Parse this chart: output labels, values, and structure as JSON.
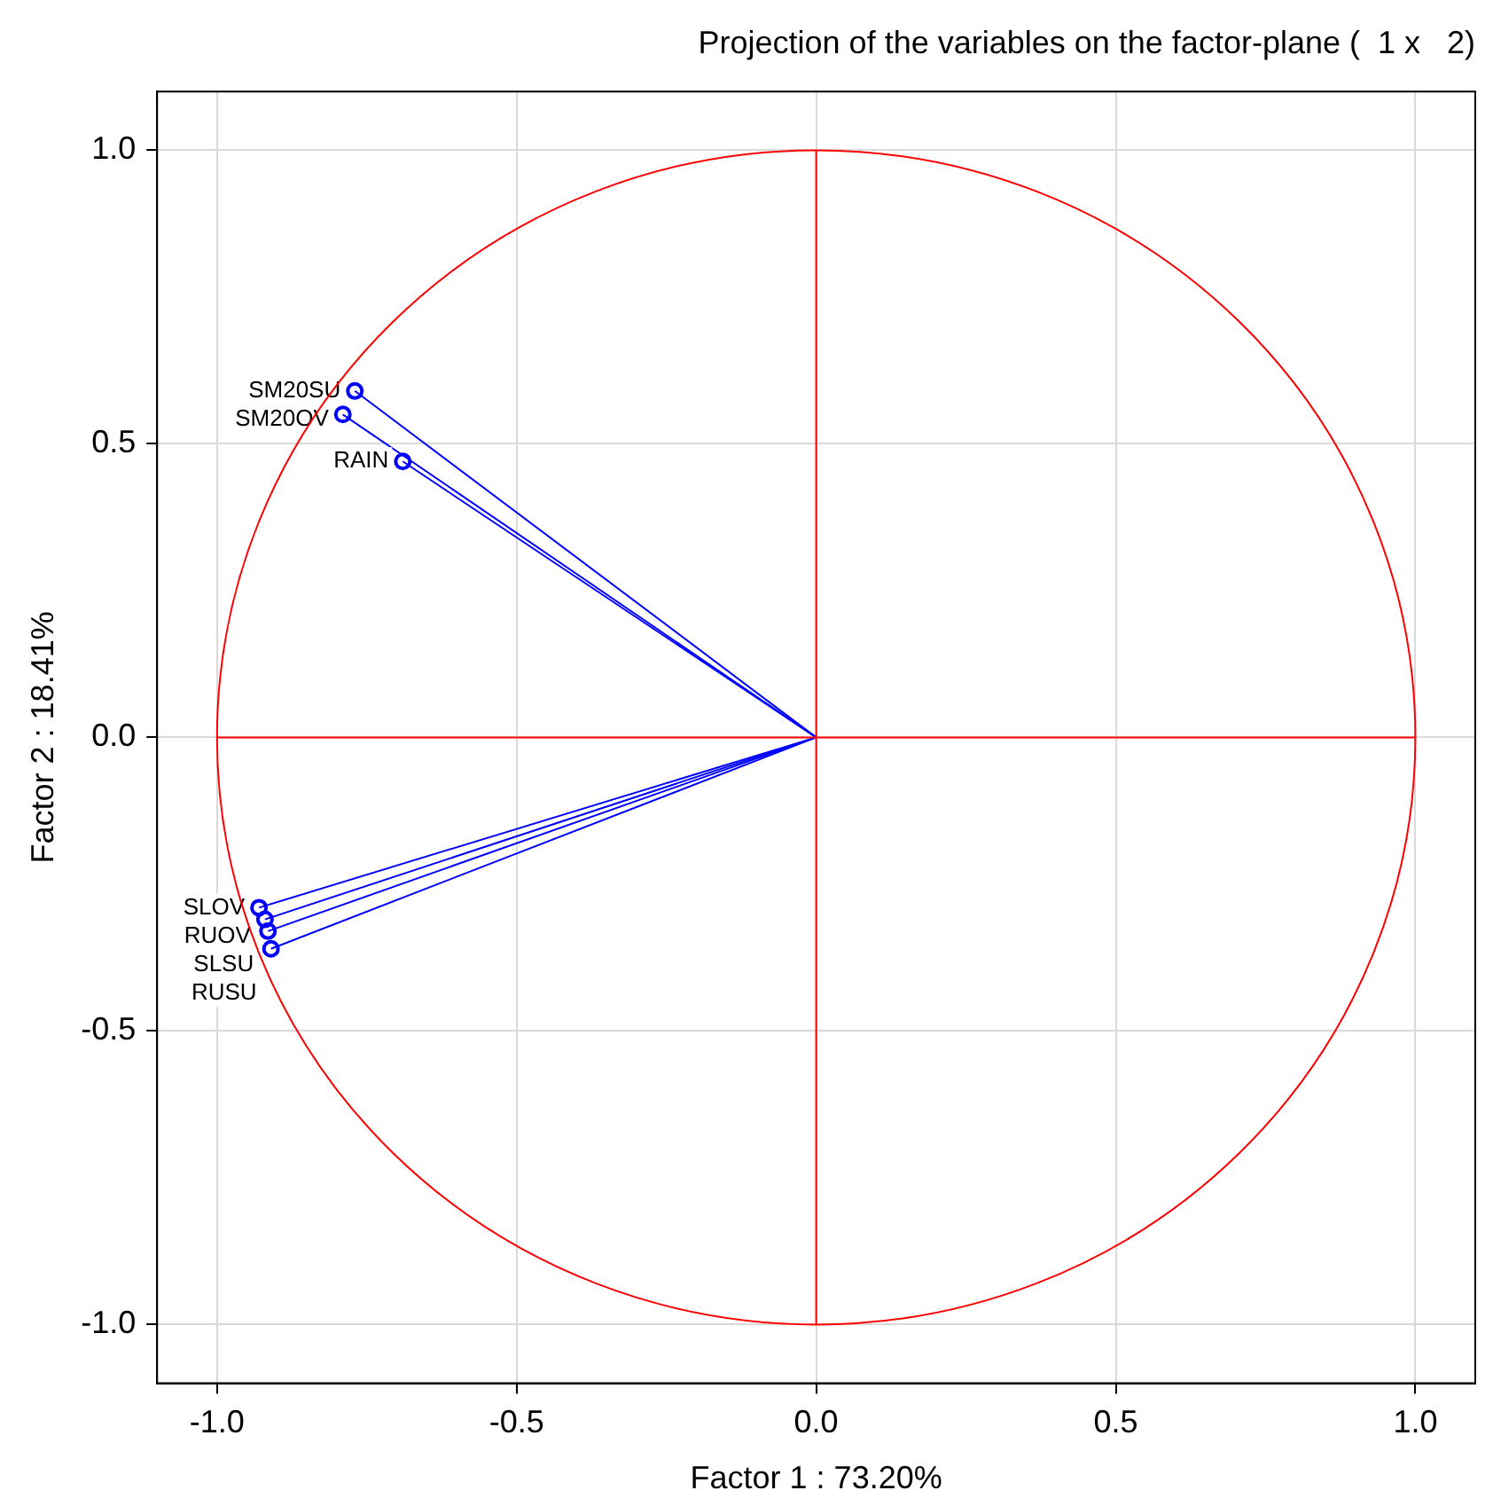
{
  "chart_data": {
    "type": "line",
    "title": "Projection of the variables on the factor-plane (  1 x   2)",
    "xlabel": "Factor 1 : 73.20%",
    "ylabel": "Factor 2 : 18.41%",
    "xlim": [
      -1.1,
      1.1
    ],
    "ylim": [
      -1.1,
      1.1
    ],
    "xticks": [
      {
        "value": -1,
        "label": "-1.0"
      },
      {
        "value": -0.5,
        "label": "-0.5"
      },
      {
        "value": 0,
        "label": "0.0"
      },
      {
        "value": 0.5,
        "label": "0.5"
      },
      {
        "value": 1,
        "label": "1.0"
      }
    ],
    "yticks": [
      {
        "value": -1,
        "label": "-1.0"
      },
      {
        "value": -0.5,
        "label": "-0.5"
      },
      {
        "value": 0,
        "label": "0.0"
      },
      {
        "value": 0.5,
        "label": "0.5"
      },
      {
        "value": 1,
        "label": "1.0"
      }
    ],
    "grid": true,
    "legend": false,
    "marker": "circle",
    "series": [
      {
        "type": "line",
        "color": "#ff0000",
        "marker": "none",
        "x": [
          0,
          0
        ],
        "values": [
          -1,
          1
        ]
      },
      {
        "type": "line",
        "color": "#ff0000",
        "marker": "none",
        "x": [
          -1,
          1
        ],
        "values": [
          0,
          0
        ]
      },
      {
        "type": "line",
        "name": "SM20SU",
        "color": "#0000ff",
        "x": [
          0,
          -0.77
        ],
        "values": [
          0,
          0.59
        ]
      },
      {
        "type": "line",
        "name": "SM20OV",
        "color": "#0000ff",
        "x": [
          0,
          -0.79
        ],
        "values": [
          0,
          0.55
        ]
      },
      {
        "type": "line",
        "name": "RAIN",
        "color": "#0000ff",
        "x": [
          0,
          -0.69
        ],
        "values": [
          0,
          0.47
        ]
      },
      {
        "type": "line",
        "name": "SLOV",
        "color": "#0000ff",
        "x": [
          0,
          -0.93
        ],
        "values": [
          0,
          -0.29
        ]
      },
      {
        "type": "line",
        "name": "RUOV",
        "color": "#0000ff",
        "x": [
          0,
          -0.92
        ],
        "values": [
          0,
          -0.31
        ]
      },
      {
        "type": "line",
        "name": "SLSU",
        "color": "#0000ff",
        "x": [
          0,
          -0.915
        ],
        "values": [
          0,
          -0.33
        ]
      },
      {
        "type": "line",
        "name": "RUSU",
        "color": "#0000ff",
        "x": [
          0,
          -0.91
        ],
        "values": [
          0,
          -0.36
        ]
      }
    ]
  }
}
